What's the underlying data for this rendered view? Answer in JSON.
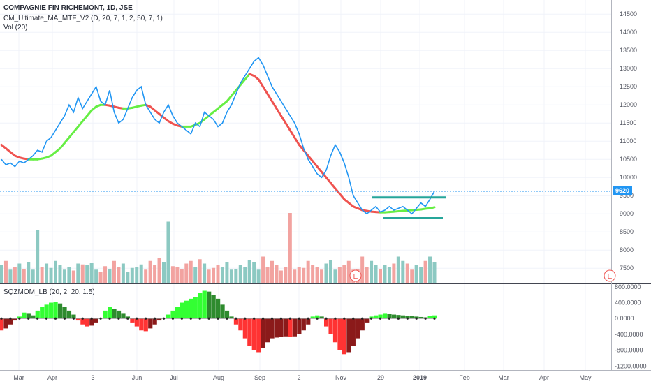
{
  "legend": {
    "title": "COMPAGNIE FIN RICHEMONT, 1D, JSE",
    "indicator": "CM_Ultimate_MA_MTF_V2 (D, 20, 7, 1, 2, 50, 7, 1)",
    "volume": "Vol (20)",
    "oscillator": "SQZMOM_LB (20, 2, 20, 1.5)"
  },
  "last_price": "9620",
  "event_marker": "E",
  "colors": {
    "price_line": "#2196f3",
    "ma_up": "#66ee44",
    "ma_down": "#ef5350",
    "support_resistance": "#26a69a",
    "vol_up": "#8cc9c2",
    "vol_down": "#f2a3a0",
    "mom_bright_green": "#33ff33",
    "mom_dark_green": "#2e8b2e",
    "mom_bright_red": "#ff3333",
    "mom_dark_red": "#8b1a1a"
  },
  "chart_data": [
    {
      "type": "line",
      "panel": "price",
      "x_labels": [
        "Mar",
        "Apr",
        "3",
        "Jun",
        "Jul",
        "Aug",
        "Sep",
        "2",
        "Nov",
        "29",
        "2019",
        "Feb",
        "Mar",
        "Apr",
        "May"
      ],
      "y_ticks": [
        "14500",
        "14000",
        "13500",
        "13000",
        "12500",
        "12000",
        "11500",
        "11000",
        "10500",
        "10000",
        "9500",
        "9000",
        "8500",
        "8000",
        "7500"
      ],
      "ylim": [
        7100,
        14600
      ],
      "series": [
        {
          "role": "price",
          "values": [
            10500,
            10350,
            10400,
            10300,
            10450,
            10400,
            10500,
            10600,
            10750,
            10700,
            11000,
            11100,
            11300,
            11500,
            11700,
            12000,
            11800,
            12200,
            11900,
            12100,
            12300,
            12500,
            12100,
            12000,
            12400,
            11800,
            11500,
            11600,
            11900,
            12200,
            12400,
            12500,
            12000,
            11800,
            11600,
            11500,
            11800,
            12000,
            11700,
            11500,
            11400,
            11300,
            11200,
            11500,
            11400,
            11800,
            11700,
            11600,
            11400,
            11500,
            11800,
            12000,
            12300,
            12600,
            12800,
            13000,
            13200,
            13300,
            13100,
            12800,
            12500,
            12300,
            12100,
            11900,
            11700,
            11500,
            11200,
            10800,
            10500,
            10300,
            10100,
            10000,
            10200,
            10600,
            10900,
            10700,
            10400,
            10000,
            9500,
            9300,
            9100,
            9000,
            9100,
            9200,
            9050,
            9100,
            9200,
            9100,
            9150,
            9200,
            9100,
            9000,
            9150,
            9300,
            9200,
            9400,
            9620
          ]
        },
        {
          "role": "moving-average",
          "values": [
            10900,
            10800,
            10700,
            10600,
            10550,
            10520,
            10500,
            10500,
            10500,
            10520,
            10550,
            10600,
            10700,
            10800,
            10950,
            11100,
            11250,
            11400,
            11550,
            11700,
            11850,
            11950,
            12000,
            12000,
            11980,
            11950,
            11920,
            11900,
            11900,
            11920,
            11950,
            11980,
            12000,
            11950,
            11850,
            11750,
            11650,
            11550,
            11480,
            11430,
            11400,
            11400,
            11400,
            11450,
            11500,
            11600,
            11700,
            11800,
            11900,
            12000,
            12100,
            12250,
            12400,
            12550,
            12700,
            12850,
            12800,
            12700,
            12500,
            12300,
            12100,
            11900,
            11700,
            11500,
            11300,
            11100,
            10900,
            10750,
            10600,
            10450,
            10300,
            10150,
            10000,
            9850,
            9700,
            9550,
            9400,
            9300,
            9200,
            9150,
            9100,
            9080,
            9060,
            9050,
            9040,
            9040,
            9050,
            9060,
            9070,
            9080,
            9090,
            9100,
            9110,
            9120,
            9140,
            9150,
            9180
          ]
        }
      ],
      "annotations": [
        {
          "kind": "resistance",
          "values": [
            9450,
            9450
          ]
        },
        {
          "kind": "support",
          "values": [
            8880,
            8880
          ]
        }
      ]
    },
    {
      "type": "bar",
      "panel": "volume",
      "values": [
        20,
        25,
        15,
        18,
        22,
        16,
        24,
        15,
        60,
        18,
        22,
        17,
        25,
        20,
        15,
        18,
        14,
        22,
        21,
        20,
        23,
        15,
        12,
        19,
        16,
        25,
        18,
        22,
        12,
        17,
        18,
        21,
        15,
        25,
        20,
        28,
        24,
        70,
        19,
        18,
        16,
        22,
        25,
        18,
        27,
        22,
        15,
        17,
        20,
        18,
        24,
        15,
        16,
        20,
        18,
        26,
        24,
        15,
        30,
        18,
        25,
        20,
        14,
        18,
        80,
        15,
        18,
        17,
        25,
        20,
        18,
        15,
        22,
        26,
        15,
        18,
        20,
        25,
        15,
        16,
        30,
        18,
        25,
        20,
        16,
        20,
        18,
        22,
        30,
        25,
        22,
        15,
        20,
        18,
        25,
        30,
        24
      ]
    },
    {
      "type": "bar",
      "panel": "momentum",
      "y_ticks": [
        "800.0000",
        "400.0000",
        "0.0000",
        "-400.0000",
        "-800.0000",
        "-1200.0000"
      ],
      "ylim": [
        -1300,
        850
      ],
      "values": [
        -300,
        -250,
        -150,
        -50,
        50,
        150,
        120,
        80,
        200,
        300,
        350,
        400,
        420,
        380,
        300,
        200,
        100,
        -50,
        -150,
        -200,
        -180,
        -100,
        20,
        200,
        300,
        250,
        200,
        120,
        50,
        -100,
        -200,
        -300,
        -320,
        -250,
        -150,
        -50,
        20,
        100,
        200,
        300,
        400,
        450,
        500,
        550,
        650,
        700,
        680,
        600,
        500,
        350,
        200,
        50,
        -150,
        -300,
        -500,
        -700,
        -800,
        -850,
        -750,
        -600,
        -500,
        -480,
        -460,
        -450,
        -470,
        -450,
        -400,
        -300,
        -150,
        50,
        80,
        50,
        -200,
        -400,
        -600,
        -800,
        -900,
        -850,
        -700,
        -500,
        -300,
        -100,
        50,
        80,
        100,
        120,
        110,
        100,
        90,
        80,
        70,
        60,
        50,
        40,
        30,
        60,
        80
      ]
    }
  ]
}
